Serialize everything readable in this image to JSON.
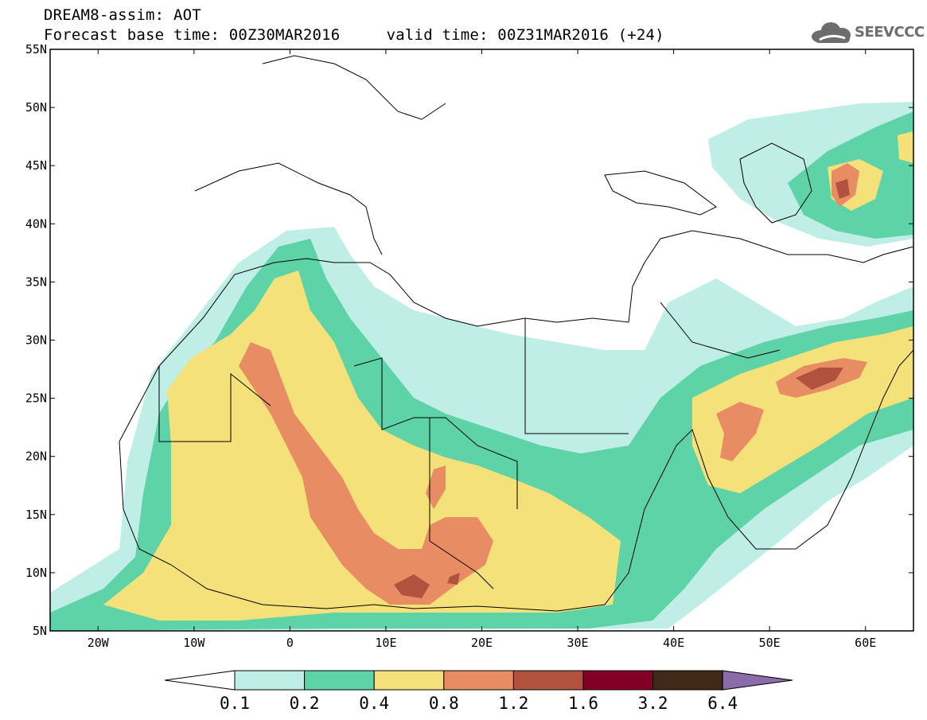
{
  "header": {
    "title_line1": "DREAM8-assim: AOT",
    "title_line2": "Forecast base time: 00Z30MAR2016     valid time: 00Z31MAR2016 (+24)"
  },
  "logo": {
    "text": "SEEVCCC",
    "icon": "cloud-icon"
  },
  "map": {
    "lat_labels": [
      "55N",
      "50N",
      "45N",
      "40N",
      "35N",
      "30N",
      "25N",
      "20N",
      "15N",
      "10N",
      "5N"
    ],
    "lon_labels": [
      "20W",
      "10W",
      "0",
      "10E",
      "20E",
      "30E",
      "40E",
      "50E",
      "60E"
    ],
    "extent": {
      "lon_min": -25,
      "lon_max": 65,
      "lat_min": 5,
      "lat_max": 55
    }
  },
  "colorbar": {
    "levels": [
      "0.1",
      "0.2",
      "0.4",
      "0.8",
      "1.2",
      "1.6",
      "3.2",
      "6.4"
    ],
    "colors": [
      "#ffffff",
      "#bfeee6",
      "#5ed3a7",
      "#f5e17a",
      "#e88c64",
      "#b0523e",
      "#830024",
      "#3f2a17",
      "#8c6bab"
    ]
  }
}
